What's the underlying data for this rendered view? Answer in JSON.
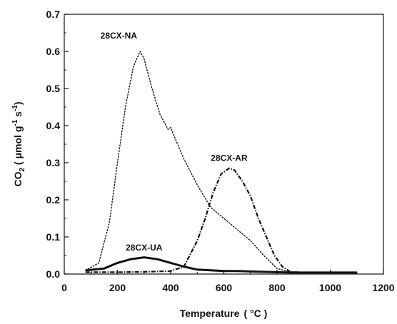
{
  "chart_data": {
    "type": "line",
    "title": "",
    "xlabel": "Temperature",
    "xlabel_unit": "( °C )",
    "ylabel": "CO2 (μmol g⁻¹ s⁻¹)",
    "ylabel_parts": {
      "base": "CO",
      "sub": "2",
      "unit_open": " ( μmol g",
      "sup1": "-1",
      "mid": " s",
      "sup2": "-1",
      "unit_close": ")"
    },
    "xlim": [
      0,
      1200
    ],
    "ylim": [
      0,
      0.7
    ],
    "xticks": [
      "0",
      "200",
      "400",
      "600",
      "800",
      "1000",
      "1200"
    ],
    "yticks": [
      "0.0",
      "0.1",
      "0.2",
      "0.3",
      "0.4",
      "0.5",
      "0.6",
      "0.7"
    ],
    "grid": false,
    "legend": "none",
    "series": [
      {
        "name": "28CX-NA",
        "style": "dotted",
        "x": [
          80,
          130,
          170,
          200,
          230,
          260,
          285,
          300,
          330,
          360,
          390,
          400,
          420,
          450,
          500,
          550,
          600,
          650,
          700,
          750,
          800,
          850,
          900,
          950,
          1000,
          1050,
          1100
        ],
        "y": [
          0.01,
          0.03,
          0.14,
          0.3,
          0.45,
          0.56,
          0.6,
          0.58,
          0.5,
          0.43,
          0.39,
          0.395,
          0.36,
          0.31,
          0.24,
          0.18,
          0.15,
          0.12,
          0.09,
          0.05,
          0.015,
          0.005,
          0.004,
          0.004,
          0.004,
          0.004,
          0.004
        ]
      },
      {
        "name": "28CX-AR",
        "style": "dash-dot",
        "x": [
          80,
          200,
          300,
          400,
          450,
          500,
          530,
          560,
          590,
          620,
          640,
          670,
          700,
          730,
          760,
          790,
          820,
          850,
          900,
          1000,
          1100
        ],
        "y": [
          0.005,
          0.005,
          0.006,
          0.008,
          0.02,
          0.09,
          0.15,
          0.22,
          0.27,
          0.285,
          0.28,
          0.25,
          0.21,
          0.15,
          0.1,
          0.05,
          0.02,
          0.006,
          0.004,
          0.004,
          0.004
        ]
      },
      {
        "name": "28CX-UA",
        "style": "solid-thick",
        "x": [
          80,
          150,
          200,
          250,
          300,
          350,
          400,
          450,
          500,
          550,
          600,
          650,
          700,
          750,
          800,
          850,
          900,
          1000,
          1100
        ],
        "y": [
          0.01,
          0.015,
          0.03,
          0.04,
          0.045,
          0.04,
          0.03,
          0.02,
          0.012,
          0.01,
          0.008,
          0.008,
          0.007,
          0.006,
          0.005,
          0.004,
          0.004,
          0.004,
          0.004
        ]
      }
    ],
    "annotations": [
      {
        "text": "28CX-NA",
        "x": 205,
        "y": 0.635
      },
      {
        "text": "28CX-AR",
        "x": 620,
        "y": 0.305
      },
      {
        "text": "28CX-UA",
        "x": 300,
        "y": 0.063
      }
    ]
  }
}
